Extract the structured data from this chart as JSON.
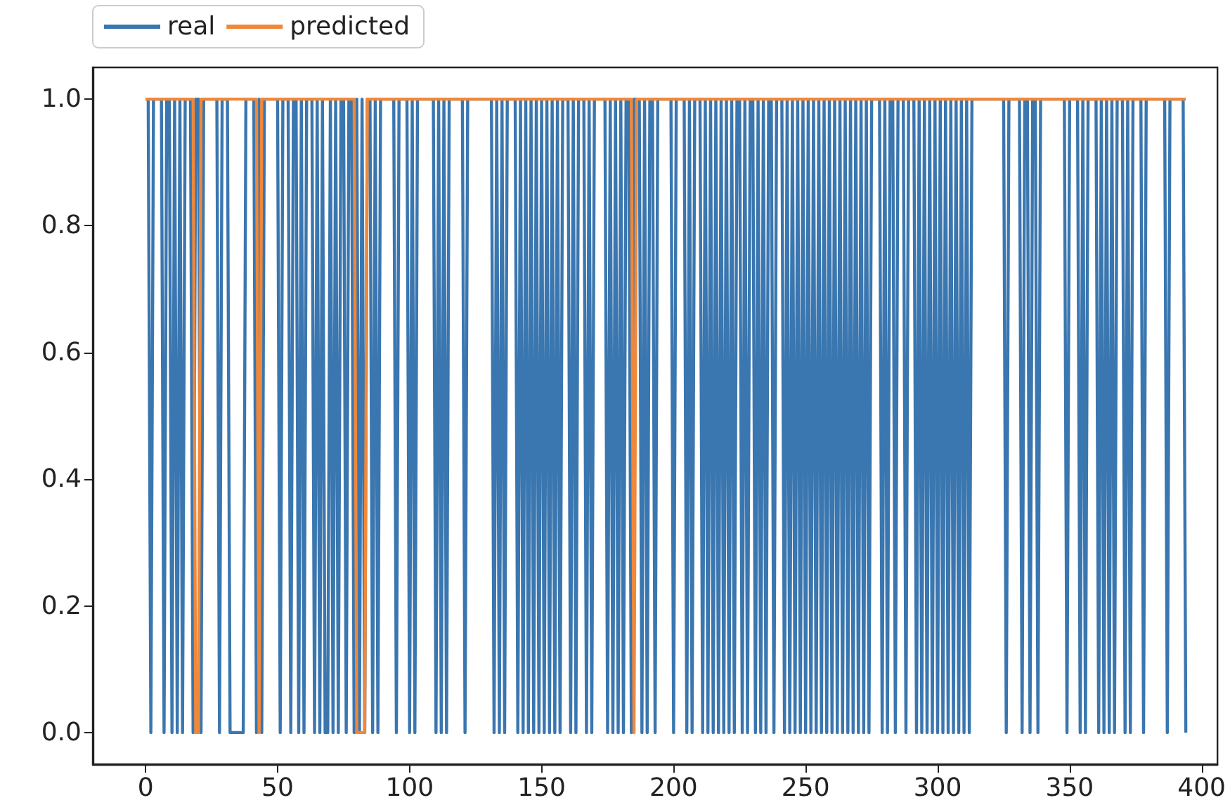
{
  "chart_data": {
    "type": "line",
    "xlim": [
      -20,
      406
    ],
    "xticks": [
      0,
      50,
      100,
      150,
      200,
      250,
      300,
      350,
      400
    ],
    "ylim": [
      -0.05,
      1.05
    ],
    "yticks": [
      {
        "value": 0,
        "label": "0.0"
      },
      {
        "value": 0.2,
        "label": "0.2"
      },
      {
        "value": 0.4,
        "label": "0.4"
      },
      {
        "value": 0.6,
        "label": "0.6"
      },
      {
        "value": 0.8,
        "label": "0.8"
      },
      {
        "value": 1,
        "label": "1.0"
      }
    ],
    "grid": false,
    "legend": "top left",
    "marker": "none",
    "line_style": "solid",
    "series": [
      {
        "name": "real",
        "color": "#3a76af",
        "x": [
          0,
          1,
          2,
          3,
          6,
          7,
          8,
          9,
          10,
          11,
          12,
          13,
          14,
          15,
          17,
          18,
          19,
          20,
          21,
          22,
          27,
          28,
          29,
          31,
          32,
          37,
          38,
          41,
          42,
          43,
          44,
          45,
          50,
          51,
          52,
          54,
          55,
          56,
          57,
          58,
          59,
          60,
          61,
          63,
          64,
          65,
          66,
          67,
          68,
          69,
          70,
          71,
          72,
          73,
          74,
          75,
          76,
          77,
          78,
          79,
          80,
          81,
          82,
          83,
          84,
          85,
          86,
          87,
          88,
          89,
          94,
          95,
          96,
          99,
          100,
          101,
          102,
          103,
          109,
          110,
          111,
          112,
          113,
          114,
          115,
          120,
          121,
          122,
          131,
          132,
          133,
          134,
          135,
          136,
          137,
          140,
          141,
          142,
          143,
          144,
          145,
          146,
          147,
          148,
          149,
          150,
          151,
          152,
          153,
          154,
          155,
          156,
          157,
          158,
          160,
          161,
          162,
          163,
          164,
          166,
          167,
          168,
          169,
          170,
          174,
          175,
          176,
          177,
          178,
          179,
          180,
          181,
          182,
          183,
          184,
          185,
          187,
          188,
          189,
          190,
          191,
          192,
          193,
          194,
          199,
          200,
          201,
          204,
          205,
          206,
          207,
          208,
          210,
          211,
          212,
          213,
          214,
          215,
          216,
          217,
          218,
          219,
          220,
          221,
          222,
          223,
          224,
          225,
          226,
          227,
          228,
          229,
          230,
          231,
          232,
          233,
          234,
          235,
          236,
          237,
          238,
          239,
          241,
          242,
          243,
          244,
          245,
          246,
          247,
          248,
          249,
          250,
          251,
          252,
          253,
          254,
          255,
          256,
          257,
          258,
          259,
          260,
          261,
          262,
          263,
          264,
          265,
          266,
          267,
          268,
          269,
          270,
          271,
          272,
          273,
          274,
          275,
          278,
          279,
          280,
          281,
          282,
          283,
          284,
          285,
          287,
          288,
          289,
          291,
          292,
          293,
          294,
          295,
          296,
          297,
          298,
          299,
          300,
          301,
          302,
          303,
          304,
          305,
          306,
          307,
          308,
          309,
          310,
          311,
          312,
          313,
          325,
          326,
          327,
          331,
          332,
          333,
          334,
          335,
          336,
          337,
          338,
          339,
          348,
          349,
          350,
          353,
          354,
          355,
          356,
          357,
          360,
          361,
          362,
          363,
          364,
          365,
          366,
          367,
          368,
          370,
          371,
          372,
          373,
          374,
          377,
          378,
          379,
          386,
          387,
          388,
          393,
          394
        ],
        "values": [
          1,
          1,
          0,
          1,
          1,
          0,
          1,
          1,
          0,
          1,
          0,
          1,
          0,
          1,
          1,
          0,
          1,
          1,
          0,
          1,
          1,
          0,
          1,
          1,
          0,
          0,
          1,
          1,
          0,
          1,
          0,
          1,
          1,
          0,
          1,
          1,
          0,
          1,
          1,
          0,
          1,
          0,
          1,
          1,
          0,
          1,
          0,
          1,
          0,
          0,
          1,
          0,
          1,
          0,
          1,
          1,
          0,
          1,
          1,
          0,
          1,
          0,
          1,
          0,
          1,
          1,
          0,
          1,
          0,
          1,
          1,
          0,
          1,
          1,
          0,
          1,
          0,
          1,
          1,
          0,
          1,
          0,
          1,
          0,
          1,
          1,
          0,
          1,
          1,
          0,
          1,
          0,
          1,
          0,
          1,
          1,
          0,
          1,
          0,
          1,
          0,
          1,
          0,
          1,
          0,
          1,
          0,
          1,
          0,
          1,
          0,
          1,
          0,
          1,
          1,
          0,
          1,
          0,
          1,
          1,
          0,
          1,
          0,
          1,
          1,
          0,
          1,
          0,
          1,
          0,
          1,
          0,
          1,
          1,
          0,
          1,
          1,
          0,
          1,
          0,
          1,
          1,
          0,
          1,
          1,
          0,
          1,
          1,
          0,
          1,
          0,
          1,
          1,
          0,
          1,
          0,
          1,
          0,
          1,
          0,
          1,
          0,
          1,
          0,
          1,
          0,
          1,
          1,
          0,
          1,
          0,
          1,
          1,
          0,
          1,
          0,
          1,
          0,
          1,
          1,
          0,
          1,
          1,
          0,
          1,
          0,
          1,
          0,
          1,
          0,
          1,
          0,
          1,
          0,
          1,
          0,
          1,
          0,
          1,
          0,
          1,
          0,
          1,
          0,
          1,
          0,
          1,
          0,
          1,
          0,
          1,
          0,
          1,
          0,
          1,
          0,
          1,
          1,
          0,
          1,
          0,
          1,
          1,
          0,
          1,
          1,
          0,
          1,
          1,
          0,
          1,
          0,
          1,
          0,
          1,
          0,
          1,
          0,
          1,
          0,
          1,
          0,
          1,
          0,
          1,
          0,
          1,
          0,
          1,
          0,
          1,
          1,
          0,
          1,
          1,
          0,
          1,
          1,
          0,
          1,
          1,
          0,
          1,
          1,
          0,
          1,
          1,
          0,
          1,
          0,
          1,
          1,
          0,
          1,
          0,
          1,
          0,
          1,
          0,
          1,
          1,
          0,
          1,
          0,
          1,
          1,
          0,
          1,
          1,
          0,
          1,
          1,
          0
        ]
      },
      {
        "name": "predicted",
        "color": "#f0883a",
        "x": [
          0,
          18,
          19,
          20,
          21,
          42,
          43,
          44,
          79,
          80,
          83,
          84,
          184,
          185,
          186,
          394
        ],
        "values": [
          1,
          1,
          0,
          0,
          1,
          1,
          0,
          1,
          1,
          0,
          0,
          1,
          1,
          0,
          1,
          1
        ]
      }
    ]
  }
}
